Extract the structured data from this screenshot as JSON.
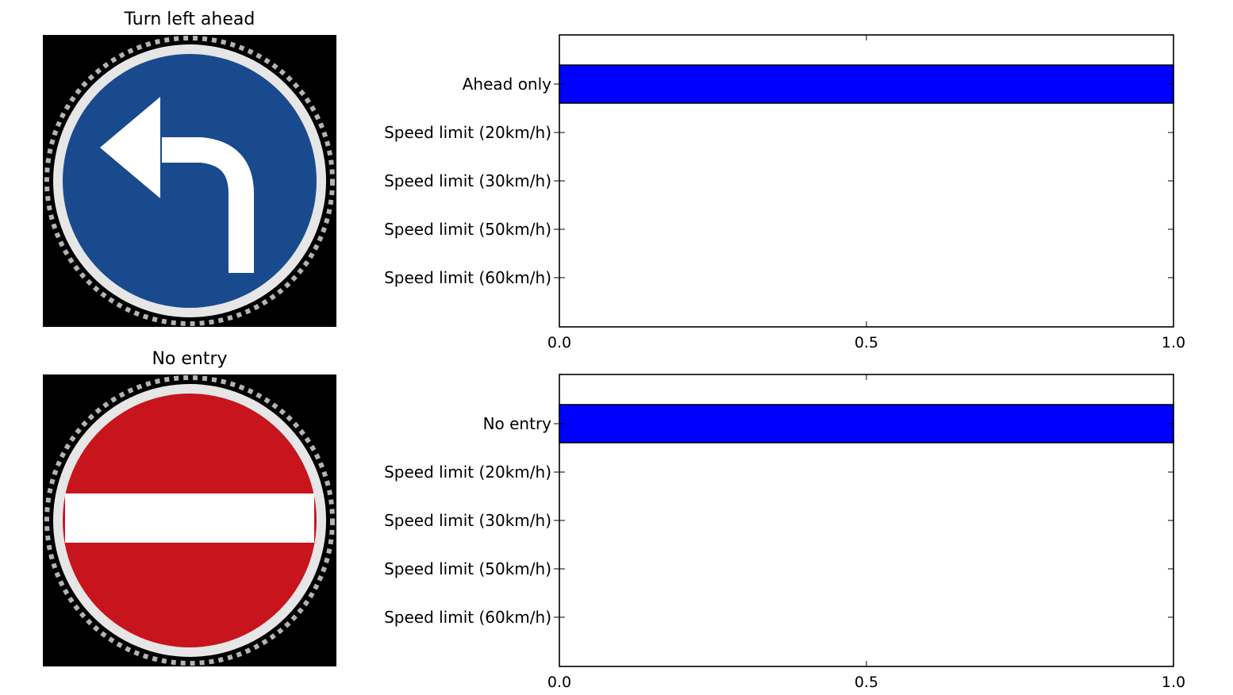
{
  "figure": {
    "next_title_partial": ""
  },
  "panels": [
    {
      "image_title": "Turn left ahead",
      "sign_icon": "turn-left-ahead-sign-icon",
      "sign_colors": {
        "disc": "#1a4a8e",
        "rim": "#e6e6e6",
        "arrow": "#ffffff",
        "background": "#000000"
      }
    },
    {
      "image_title": "No entry",
      "sign_icon": "no-entry-sign-icon",
      "sign_colors": {
        "disc": "#c8141c",
        "rim": "#e6e6e6",
        "bar": "#ffffff",
        "background": "#000000"
      }
    }
  ],
  "chart_data": [
    {
      "type": "bar",
      "orientation": "horizontal",
      "categories": [
        "Ahead only",
        "Speed limit (20km/h)",
        "Speed limit (30km/h)",
        "Speed limit (50km/h)",
        "Speed limit (60km/h)"
      ],
      "values": [
        1.0,
        0.0,
        0.0,
        0.0,
        0.0
      ],
      "xlim": [
        0.0,
        1.0
      ],
      "xticks": [
        "0.0",
        "0.5",
        "1.0"
      ],
      "bar_color": "#0000ff",
      "title": "",
      "xlabel": "",
      "ylabel": ""
    },
    {
      "type": "bar",
      "orientation": "horizontal",
      "categories": [
        "No entry",
        "Speed limit (20km/h)",
        "Speed limit (30km/h)",
        "Speed limit (50km/h)",
        "Speed limit (60km/h)"
      ],
      "values": [
        1.0,
        0.0,
        0.0,
        0.0,
        0.0
      ],
      "xlim": [
        0.0,
        1.0
      ],
      "xticks": [
        "0.0",
        "0.5",
        "1.0"
      ],
      "bar_color": "#0000ff",
      "title": "",
      "xlabel": "",
      "ylabel": ""
    }
  ]
}
